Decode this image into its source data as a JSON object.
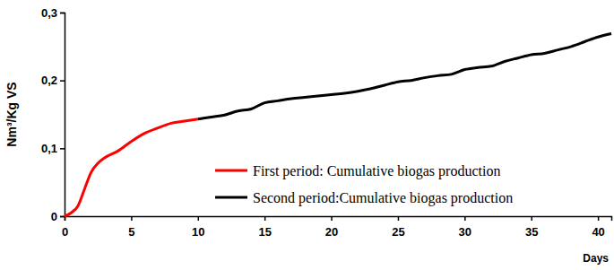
{
  "chart_data": {
    "type": "line",
    "x_label": "Days",
    "y_label": "Nm³/Kg VS",
    "xlim": [
      0,
      41
    ],
    "ylim": [
      0,
      0.3
    ],
    "xticks": [
      0,
      5,
      10,
      15,
      20,
      25,
      30,
      35,
      40
    ],
    "yticks": [
      0,
      {
        "value": 0.1,
        "label": "0,1"
      },
      {
        "value": 0.2,
        "label": "0,2"
      },
      {
        "value": 0.3,
        "label": "0,3"
      }
    ],
    "grid": false,
    "legend": "lower right",
    "series": [
      {
        "name": "First period: Cumulative biogas production",
        "color": "#ff0000",
        "x": [
          0,
          0.5,
          1,
          1.5,
          2,
          2.5,
          3,
          4,
          5,
          6,
          7,
          8,
          9,
          10
        ],
        "values": [
          0,
          0.005,
          0.015,
          0.04,
          0.065,
          0.078,
          0.086,
          0.096,
          0.11,
          0.122,
          0.13,
          0.137,
          0.14,
          0.143
        ]
      },
      {
        "name": "Second period:Cumulative biogas production",
        "color": "#000000",
        "x": [
          10,
          11,
          12,
          13,
          14,
          15,
          16,
          17,
          18,
          19,
          20,
          21,
          22,
          23,
          24,
          25,
          26,
          27,
          28,
          29,
          30,
          31,
          32,
          33,
          34,
          35,
          36,
          37,
          38,
          39,
          40,
          41
        ],
        "values": [
          0.143,
          0.146,
          0.149,
          0.155,
          0.158,
          0.167,
          0.17,
          0.173,
          0.175,
          0.177,
          0.179,
          0.181,
          0.184,
          0.188,
          0.193,
          0.198,
          0.2,
          0.204,
          0.207,
          0.209,
          0.216,
          0.219,
          0.221,
          0.228,
          0.233,
          0.238,
          0.24,
          0.245,
          0.25,
          0.257,
          0.264,
          0.269
        ]
      }
    ]
  }
}
